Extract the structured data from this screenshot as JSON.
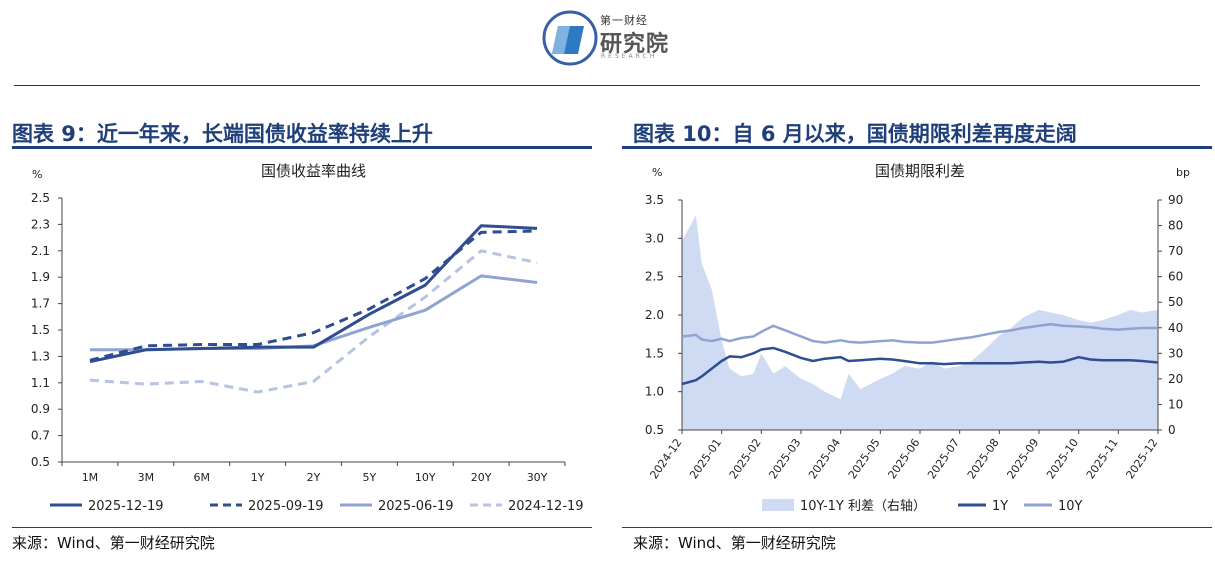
{
  "header": {
    "logo_small": "第一财经",
    "logo_big": "研究院",
    "logo_sub": "RESEARCH"
  },
  "colors": {
    "dark": "#2f4d91",
    "mid": "#8fa3d3",
    "light": "#b7c3e3",
    "area": "#cfdbf2",
    "title": "#1f3f7a"
  },
  "left": {
    "title": "图表 9：近一年来，长端国债收益率持续上升",
    "source": "来源：Wind、第一财经研究院"
  },
  "right": {
    "title": "图表 10：自 6 月以来，国债期限利差再度走阔",
    "source": "来源：Wind、第一财经研究院"
  },
  "chart_data": [
    {
      "type": "line",
      "title": "国债收益率曲线",
      "ylabel": "%",
      "ylim": [
        0.5,
        2.5
      ],
      "yticks": [
        0.5,
        0.7,
        0.9,
        1.1,
        1.3,
        1.5,
        1.7,
        1.9,
        2.1,
        2.3,
        2.5
      ],
      "categories": [
        "1M",
        "3M",
        "6M",
        "1Y",
        "2Y",
        "5Y",
        "10Y",
        "20Y",
        "30Y"
      ],
      "series": [
        {
          "name": "2025-12-19",
          "style": "solid",
          "color": "#2f4d91",
          "values": [
            1.26,
            1.35,
            1.36,
            1.37,
            1.37,
            1.62,
            1.84,
            2.29,
            2.27
          ]
        },
        {
          "name": "2025-09-19",
          "style": "dashed",
          "color": "#2f4d91",
          "values": [
            1.27,
            1.38,
            1.39,
            1.39,
            1.48,
            1.66,
            1.89,
            2.24,
            2.25
          ]
        },
        {
          "name": "2025-06-19",
          "style": "solid",
          "color": "#8fa3d3",
          "values": [
            1.35,
            1.35,
            1.36,
            1.36,
            1.38,
            1.52,
            1.65,
            1.91,
            1.86
          ]
        },
        {
          "name": "2024-12-19",
          "style": "dashed",
          "color": "#b7c3e3",
          "values": [
            1.12,
            1.09,
            1.11,
            1.03,
            1.11,
            1.45,
            1.75,
            2.1,
            2.01
          ]
        }
      ],
      "legend": "bottom"
    },
    {
      "type": "line",
      "title": "国债期限利差",
      "ylabel": "%",
      "y2label": "bp",
      "ylim": [
        0.5,
        3.5
      ],
      "yticks": [
        0.5,
        1.0,
        1.5,
        2.0,
        2.5,
        3.0,
        3.5
      ],
      "y2lim": [
        0,
        90
      ],
      "y2ticks": [
        0,
        10,
        20,
        30,
        40,
        50,
        60,
        70,
        80,
        90
      ],
      "xlabels": [
        "2024-12",
        "2025-01",
        "2025-02",
        "2025-03",
        "2025-04",
        "2025-05",
        "2025-06",
        "2025-07",
        "2025-08",
        "2025-09",
        "2025-10",
        "2025-11",
        "2025-12"
      ],
      "x": [
        0,
        0.35,
        0.5,
        0.75,
        1,
        1.2,
        1.5,
        1.8,
        2,
        2.3,
        2.6,
        3,
        3.3,
        3.6,
        4,
        4.2,
        4.5,
        5,
        5.3,
        5.6,
        6,
        6.3,
        6.6,
        7,
        7.3,
        7.6,
        8,
        8.3,
        8.6,
        9,
        9.3,
        9.6,
        10,
        10.3,
        10.6,
        11,
        11.3,
        11.6,
        12
      ],
      "series": [
        {
          "name": "10Y-1Y 利差（右轴）",
          "axis": "right",
          "style": "area",
          "color": "#cfdbf2",
          "values": [
            74,
            84,
            65,
            55,
            35,
            24,
            21,
            22,
            30,
            22,
            25,
            20,
            18,
            15,
            12,
            22,
            16,
            20,
            22,
            25,
            24,
            27,
            24,
            25,
            27,
            31,
            37,
            40,
            44,
            47,
            46,
            45,
            43,
            42,
            43,
            45,
            47,
            46,
            47
          ]
        },
        {
          "name": "1Y",
          "axis": "left",
          "style": "solid",
          "color": "#2f4d91",
          "values": [
            1.1,
            1.15,
            1.2,
            1.3,
            1.4,
            1.46,
            1.45,
            1.5,
            1.55,
            1.57,
            1.52,
            1.44,
            1.4,
            1.43,
            1.45,
            1.4,
            1.41,
            1.43,
            1.42,
            1.4,
            1.37,
            1.37,
            1.36,
            1.37,
            1.37,
            1.37,
            1.37,
            1.37,
            1.38,
            1.39,
            1.38,
            1.39,
            1.45,
            1.42,
            1.41,
            1.41,
            1.41,
            1.4,
            1.38
          ]
        },
        {
          "name": "10Y",
          "axis": "left",
          "style": "solid",
          "color": "#8fa3d3",
          "values": [
            1.72,
            1.74,
            1.68,
            1.66,
            1.69,
            1.66,
            1.7,
            1.72,
            1.78,
            1.86,
            1.8,
            1.72,
            1.66,
            1.64,
            1.67,
            1.65,
            1.64,
            1.66,
            1.67,
            1.65,
            1.64,
            1.64,
            1.66,
            1.69,
            1.71,
            1.74,
            1.78,
            1.8,
            1.83,
            1.86,
            1.88,
            1.86,
            1.85,
            1.84,
            1.82,
            1.81,
            1.82,
            1.83,
            1.83
          ]
        }
      ],
      "legend": "bottom"
    }
  ]
}
